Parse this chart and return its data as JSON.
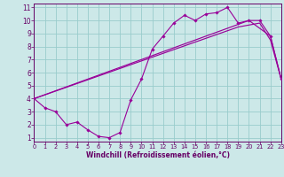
{
  "xlabel": "Windchill (Refroidissement éolien,°C)",
  "bg_color": "#cce8e8",
  "line_color": "#990099",
  "grid_color": "#99cccc",
  "xlim": [
    0,
    23
  ],
  "ylim": [
    0.7,
    11.3
  ],
  "xticks": [
    0,
    1,
    2,
    3,
    4,
    5,
    6,
    7,
    8,
    9,
    10,
    11,
    12,
    13,
    14,
    15,
    16,
    17,
    18,
    19,
    20,
    21,
    22,
    23
  ],
  "yticks": [
    1,
    2,
    3,
    4,
    5,
    6,
    7,
    8,
    9,
    10,
    11
  ],
  "curve1_x": [
    0,
    1,
    2,
    3,
    4,
    5,
    6,
    7,
    8,
    9,
    10,
    11,
    12,
    13,
    14,
    15,
    16,
    17,
    18,
    19,
    20,
    21,
    22,
    23
  ],
  "curve1_y": [
    4.0,
    3.3,
    3.0,
    2.0,
    2.2,
    1.6,
    1.1,
    1.0,
    1.4,
    3.9,
    5.5,
    7.8,
    8.8,
    9.8,
    10.4,
    10.0,
    10.5,
    10.6,
    11.0,
    9.8,
    10.0,
    10.0,
    8.8,
    5.5
  ],
  "curve2_x": [
    0,
    20,
    22,
    23
  ],
  "curve2_y": [
    4.0,
    10.0,
    8.8,
    5.5
  ],
  "curve3_x": [
    0,
    19,
    21,
    22,
    23
  ],
  "curve3_y": [
    4.0,
    9.5,
    9.8,
    8.5,
    5.5
  ],
  "xlabel_fontsize": 5.5,
  "tick_fontsize_x": 4.8,
  "tick_fontsize_y": 5.5,
  "label_color": "#660066"
}
